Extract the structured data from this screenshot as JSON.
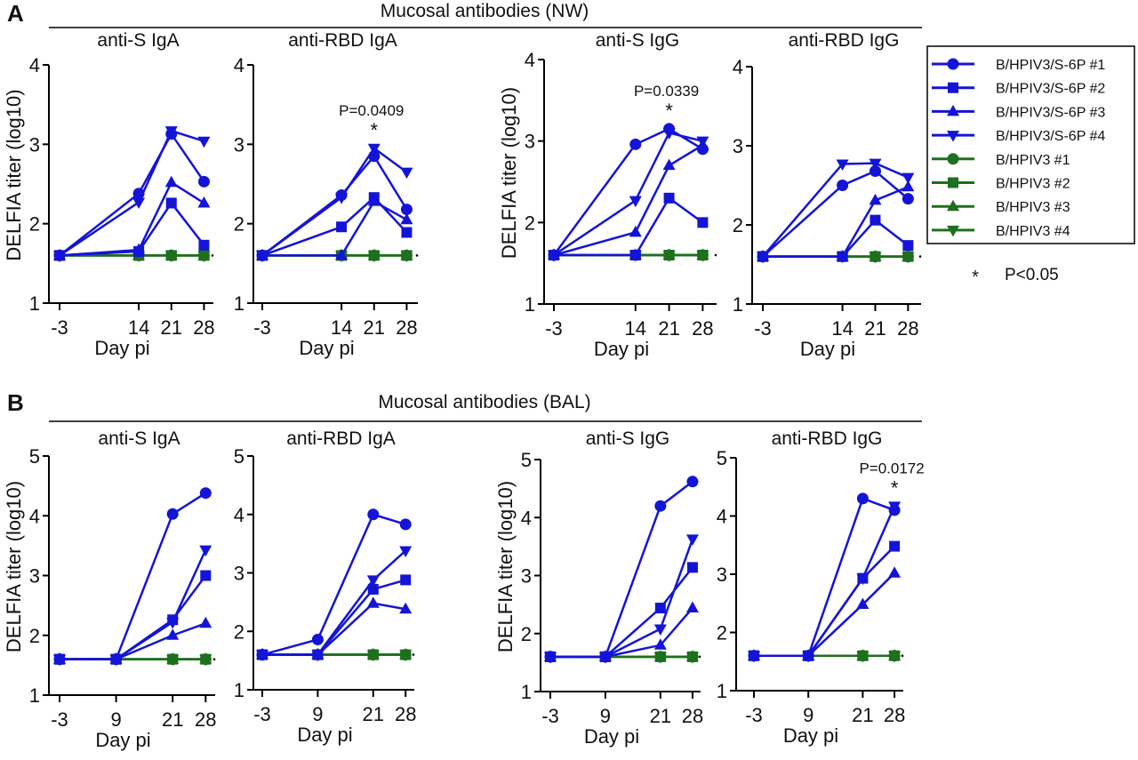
{
  "colors": {
    "vaccine": "#1414d8",
    "control": "#1d701d",
    "axis": "#000000"
  },
  "figure": {
    "sections": [
      {
        "letter": "A",
        "title": "Mucosal antibodies (NW)"
      },
      {
        "letter": "B",
        "title": "Mucosal antibodies (BAL)"
      }
    ],
    "legend": {
      "placement": "right",
      "entries": [
        {
          "label": "B/HPIV3/S-6P #1",
          "marker": "circle",
          "group": "vaccine"
        },
        {
          "label": "B/HPIV3/S-6P #2",
          "marker": "square",
          "group": "vaccine"
        },
        {
          "label": "B/HPIV3/S-6P #3",
          "marker": "triangle-up",
          "group": "vaccine"
        },
        {
          "label": "B/HPIV3/S-6P #4",
          "marker": "triangle-down",
          "group": "vaccine"
        },
        {
          "label": "B/HPIV3 #1",
          "marker": "circle",
          "group": "control"
        },
        {
          "label": "B/HPIV3 #2",
          "marker": "square",
          "group": "control"
        },
        {
          "label": "B/HPIV3 #3",
          "marker": "triangle-up",
          "group": "control"
        },
        {
          "label": "B/HPIV3 #4",
          "marker": "triangle-down",
          "group": "control"
        }
      ],
      "note_symbol": "*",
      "note_text": "P<0.05"
    }
  },
  "chart_data": [
    {
      "type": "line",
      "section": "A",
      "title": "anti-S IgA",
      "xlabel": "Day pi",
      "ylabel": "DELFIA titer (log10)",
      "x": [
        -3,
        14,
        21,
        28
      ],
      "xticks": [
        "-3",
        "14",
        "21",
        "28"
      ],
      "ylim": [
        1,
        4
      ],
      "yticks": [
        "1",
        "2",
        "3",
        "4"
      ],
      "grid": false,
      "series": [
        {
          "name": "B/HPIV3/S-6P #1",
          "values": [
            1.6,
            2.38,
            3.13,
            2.53
          ]
        },
        {
          "name": "B/HPIV3/S-6P #2",
          "values": [
            1.6,
            1.65,
            2.26,
            1.73
          ]
        },
        {
          "name": "B/HPIV3/S-6P #3",
          "values": [
            1.6,
            1.67,
            2.52,
            2.26
          ]
        },
        {
          "name": "B/HPIV3/S-6P #4",
          "values": [
            1.6,
            2.27,
            3.17,
            3.04
          ]
        },
        {
          "name": "B/HPIV3 #1",
          "values": [
            1.6,
            1.6,
            1.6,
            1.6
          ]
        },
        {
          "name": "B/HPIV3 #2",
          "values": [
            1.6,
            1.6,
            1.6,
            1.6
          ]
        },
        {
          "name": "B/HPIV3 #3",
          "values": [
            1.6,
            1.6,
            1.6,
            1.6
          ]
        },
        {
          "name": "B/HPIV3 #4",
          "values": [
            1.6,
            1.6,
            1.6,
            1.6
          ]
        }
      ],
      "annotation": null
    },
    {
      "type": "line",
      "section": "A",
      "title": "anti-RBD IgA",
      "xlabel": "Day pi",
      "ylabel": "",
      "x": [
        -3,
        14,
        21,
        28
      ],
      "xticks": [
        "-3",
        "14",
        "21",
        "28"
      ],
      "ylim": [
        1,
        4
      ],
      "yticks": [
        "1",
        "2",
        "3",
        "4"
      ],
      "grid": false,
      "series": [
        {
          "name": "B/HPIV3/S-6P #1",
          "values": [
            1.6,
            2.36,
            2.85,
            2.18
          ]
        },
        {
          "name": "B/HPIV3/S-6P #2",
          "values": [
            1.6,
            1.96,
            2.33,
            1.89
          ]
        },
        {
          "name": "B/HPIV3/S-6P #3",
          "values": [
            1.6,
            1.6,
            2.28,
            2.05
          ]
        },
        {
          "name": "B/HPIV3/S-6P #4",
          "values": [
            1.6,
            2.33,
            2.95,
            2.65
          ]
        },
        {
          "name": "B/HPIV3 #1",
          "values": [
            1.6,
            1.6,
            1.6,
            1.6
          ]
        },
        {
          "name": "B/HPIV3 #2",
          "values": [
            1.6,
            1.6,
            1.6,
            1.6
          ]
        },
        {
          "name": "B/HPIV3 #3",
          "values": [
            1.6,
            1.6,
            1.6,
            1.6
          ]
        },
        {
          "name": "B/HPIV3 #4",
          "values": [
            1.6,
            1.6,
            1.6,
            1.6
          ]
        }
      ],
      "annotation": {
        "x": 21,
        "text": "P=0.0409",
        "symbol": "*"
      }
    },
    {
      "type": "line",
      "section": "A",
      "title": "anti-S IgG",
      "xlabel": "Day pi",
      "ylabel": "DELFIA titer (log10)",
      "x": [
        -3,
        14,
        21,
        28
      ],
      "xticks": [
        "-3",
        "14",
        "21",
        "28"
      ],
      "ylim": [
        1,
        4
      ],
      "yticks": [
        "1",
        "2",
        "3",
        "4"
      ],
      "grid": false,
      "series": [
        {
          "name": "B/HPIV3/S-6P #1",
          "values": [
            1.6,
            2.96,
            3.15,
            2.9
          ]
        },
        {
          "name": "B/HPIV3/S-6P #2",
          "values": [
            1.6,
            1.6,
            2.3,
            2.0
          ]
        },
        {
          "name": "B/HPIV3/S-6P #3",
          "values": [
            1.6,
            1.88,
            2.7,
            2.95
          ]
        },
        {
          "name": "B/HPIV3/S-6P #4",
          "values": [
            1.6,
            2.27,
            3.1,
            3.0
          ]
        },
        {
          "name": "B/HPIV3 #1",
          "values": [
            1.6,
            1.6,
            1.6,
            1.6
          ]
        },
        {
          "name": "B/HPIV3 #2",
          "values": [
            1.6,
            1.6,
            1.6,
            1.6
          ]
        },
        {
          "name": "B/HPIV3 #3",
          "values": [
            1.6,
            1.6,
            1.6,
            1.6
          ]
        },
        {
          "name": "B/HPIV3 #4",
          "values": [
            1.6,
            1.6,
            1.6,
            1.6
          ]
        }
      ],
      "annotation": {
        "x": 21,
        "text": "P=0.0339",
        "symbol": "*"
      }
    },
    {
      "type": "line",
      "section": "A",
      "title": "anti-RBD IgG",
      "xlabel": "Day pi",
      "ylabel": "",
      "x": [
        -3,
        14,
        21,
        28
      ],
      "xticks": [
        "-3",
        "14",
        "21",
        "28"
      ],
      "ylim": [
        1,
        4
      ],
      "yticks": [
        "1",
        "2",
        "3",
        "4"
      ],
      "grid": false,
      "series": [
        {
          "name": "B/HPIV3/S-6P #1",
          "values": [
            1.6,
            2.5,
            2.68,
            2.33
          ]
        },
        {
          "name": "B/HPIV3/S-6P #2",
          "values": [
            1.6,
            1.6,
            2.06,
            1.74
          ]
        },
        {
          "name": "B/HPIV3/S-6P #3",
          "values": [
            1.6,
            1.6,
            2.31,
            2.48
          ]
        },
        {
          "name": "B/HPIV3/S-6P #4",
          "values": [
            1.6,
            2.77,
            2.78,
            2.6
          ]
        },
        {
          "name": "B/HPIV3 #1",
          "values": [
            1.6,
            1.6,
            1.6,
            1.6
          ]
        },
        {
          "name": "B/HPIV3 #2",
          "values": [
            1.6,
            1.6,
            1.6,
            1.6
          ]
        },
        {
          "name": "B/HPIV3 #3",
          "values": [
            1.6,
            1.6,
            1.6,
            1.6
          ]
        },
        {
          "name": "B/HPIV3 #4",
          "values": [
            1.6,
            1.6,
            1.6,
            1.6
          ]
        }
      ],
      "annotation": null
    },
    {
      "type": "line",
      "section": "B",
      "title": "anti-S IgA",
      "xlabel": "Day pi",
      "ylabel": "DELFIA titer (log10)",
      "x": [
        -3,
        9,
        21,
        28
      ],
      "xticks": [
        "-3",
        "9",
        "21",
        "28"
      ],
      "ylim": [
        1,
        5
      ],
      "yticks": [
        "1",
        "2",
        "3",
        "4",
        "5"
      ],
      "grid": false,
      "series": [
        {
          "name": "B/HPIV3/S-6P #1",
          "values": [
            1.6,
            1.6,
            4.03,
            4.38
          ]
        },
        {
          "name": "B/HPIV3/S-6P #2",
          "values": [
            1.6,
            1.6,
            2.26,
            3.0
          ]
        },
        {
          "name": "B/HPIV3/S-6P #3",
          "values": [
            1.6,
            1.6,
            2.0,
            2.2
          ]
        },
        {
          "name": "B/HPIV3/S-6P #4",
          "values": [
            1.6,
            1.6,
            2.22,
            3.43
          ]
        },
        {
          "name": "B/HPIV3 #1",
          "values": [
            1.6,
            1.6,
            1.6,
            1.6
          ]
        },
        {
          "name": "B/HPIV3 #2",
          "values": [
            1.6,
            1.6,
            1.6,
            1.6
          ]
        },
        {
          "name": "B/HPIV3 #3",
          "values": [
            1.6,
            1.6,
            1.6,
            1.6
          ]
        },
        {
          "name": "B/HPIV3 #4",
          "values": [
            1.6,
            1.6,
            1.6,
            1.6
          ]
        }
      ],
      "annotation": null
    },
    {
      "type": "line",
      "section": "B",
      "title": "anti-RBD IgA",
      "xlabel": "Day pi",
      "ylabel": "",
      "x": [
        -3,
        9,
        21,
        28
      ],
      "xticks": [
        "-3",
        "9",
        "21",
        "28"
      ],
      "ylim": [
        1,
        5
      ],
      "yticks": [
        "1",
        "2",
        "3",
        "4",
        "5"
      ],
      "grid": false,
      "series": [
        {
          "name": "B/HPIV3/S-6P #1",
          "values": [
            1.6,
            1.86,
            4.0,
            3.83
          ]
        },
        {
          "name": "B/HPIV3/S-6P #2",
          "values": [
            1.6,
            1.6,
            2.72,
            2.88
          ]
        },
        {
          "name": "B/HPIV3/S-6P #3",
          "values": [
            1.6,
            1.6,
            2.48,
            2.38
          ]
        },
        {
          "name": "B/HPIV3/S-6P #4",
          "values": [
            1.6,
            1.6,
            2.88,
            3.38
          ]
        },
        {
          "name": "B/HPIV3 #1",
          "values": [
            1.6,
            1.6,
            1.6,
            1.6
          ]
        },
        {
          "name": "B/HPIV3 #2",
          "values": [
            1.6,
            1.6,
            1.6,
            1.6
          ]
        },
        {
          "name": "B/HPIV3 #3",
          "values": [
            1.6,
            1.6,
            1.6,
            1.6
          ]
        },
        {
          "name": "B/HPIV3 #4",
          "values": [
            1.6,
            1.6,
            1.6,
            1.6
          ]
        }
      ],
      "annotation": null
    },
    {
      "type": "line",
      "section": "B",
      "title": "anti-S IgG",
      "xlabel": "Day pi",
      "ylabel": "DELFIA titer (log10)",
      "x": [
        -3,
        9,
        21,
        28
      ],
      "xticks": [
        "-3",
        "9",
        "21",
        "28"
      ],
      "ylim": [
        1,
        5
      ],
      "yticks": [
        "1",
        "2",
        "3",
        "4",
        "5"
      ],
      "grid": false,
      "series": [
        {
          "name": "B/HPIV3/S-6P #1",
          "values": [
            1.6,
            1.6,
            4.2,
            4.62
          ]
        },
        {
          "name": "B/HPIV3/S-6P #2",
          "values": [
            1.6,
            1.6,
            2.44,
            3.14
          ]
        },
        {
          "name": "B/HPIV3/S-6P #3",
          "values": [
            1.6,
            1.6,
            1.8,
            2.44
          ]
        },
        {
          "name": "B/HPIV3/S-6P #4",
          "values": [
            1.6,
            1.6,
            2.08,
            3.63
          ]
        },
        {
          "name": "B/HPIV3 #1",
          "values": [
            1.6,
            1.6,
            1.6,
            1.6
          ]
        },
        {
          "name": "B/HPIV3 #2",
          "values": [
            1.6,
            1.6,
            1.6,
            1.6
          ]
        },
        {
          "name": "B/HPIV3 #3",
          "values": [
            1.6,
            1.6,
            1.6,
            1.6
          ]
        },
        {
          "name": "B/HPIV3 #4",
          "values": [
            1.6,
            1.6,
            1.6,
            1.6
          ]
        }
      ],
      "annotation": null
    },
    {
      "type": "line",
      "section": "B",
      "title": "anti-RBD IgG",
      "xlabel": "Day pi",
      "ylabel": "",
      "x": [
        -3,
        9,
        21,
        28
      ],
      "xticks": [
        "-3",
        "9",
        "21",
        "28"
      ],
      "ylim": [
        1,
        5
      ],
      "yticks": [
        "1",
        "2",
        "3",
        "4",
        "5"
      ],
      "grid": false,
      "series": [
        {
          "name": "B/HPIV3/S-6P #1",
          "values": [
            1.6,
            1.6,
            4.3,
            4.1
          ]
        },
        {
          "name": "B/HPIV3/S-6P #2",
          "values": [
            1.6,
            1.6,
            2.93,
            3.48
          ]
        },
        {
          "name": "B/HPIV3/S-6P #3",
          "values": [
            1.6,
            1.6,
            2.48,
            3.02
          ]
        },
        {
          "name": "B/HPIV3/S-6P #4",
          "values": [
            1.6,
            1.6,
            2.93,
            4.17
          ]
        },
        {
          "name": "B/HPIV3 #1",
          "values": [
            1.6,
            1.6,
            1.6,
            1.6
          ]
        },
        {
          "name": "B/HPIV3 #2",
          "values": [
            1.6,
            1.6,
            1.6,
            1.6
          ]
        },
        {
          "name": "B/HPIV3 #3",
          "values": [
            1.6,
            1.6,
            1.6,
            1.6
          ]
        },
        {
          "name": "B/HPIV3 #4",
          "values": [
            1.6,
            1.6,
            1.6,
            1.6
          ]
        }
      ],
      "annotation": {
        "x": 28,
        "text": "P=0.0172",
        "symbol": "*"
      }
    }
  ]
}
